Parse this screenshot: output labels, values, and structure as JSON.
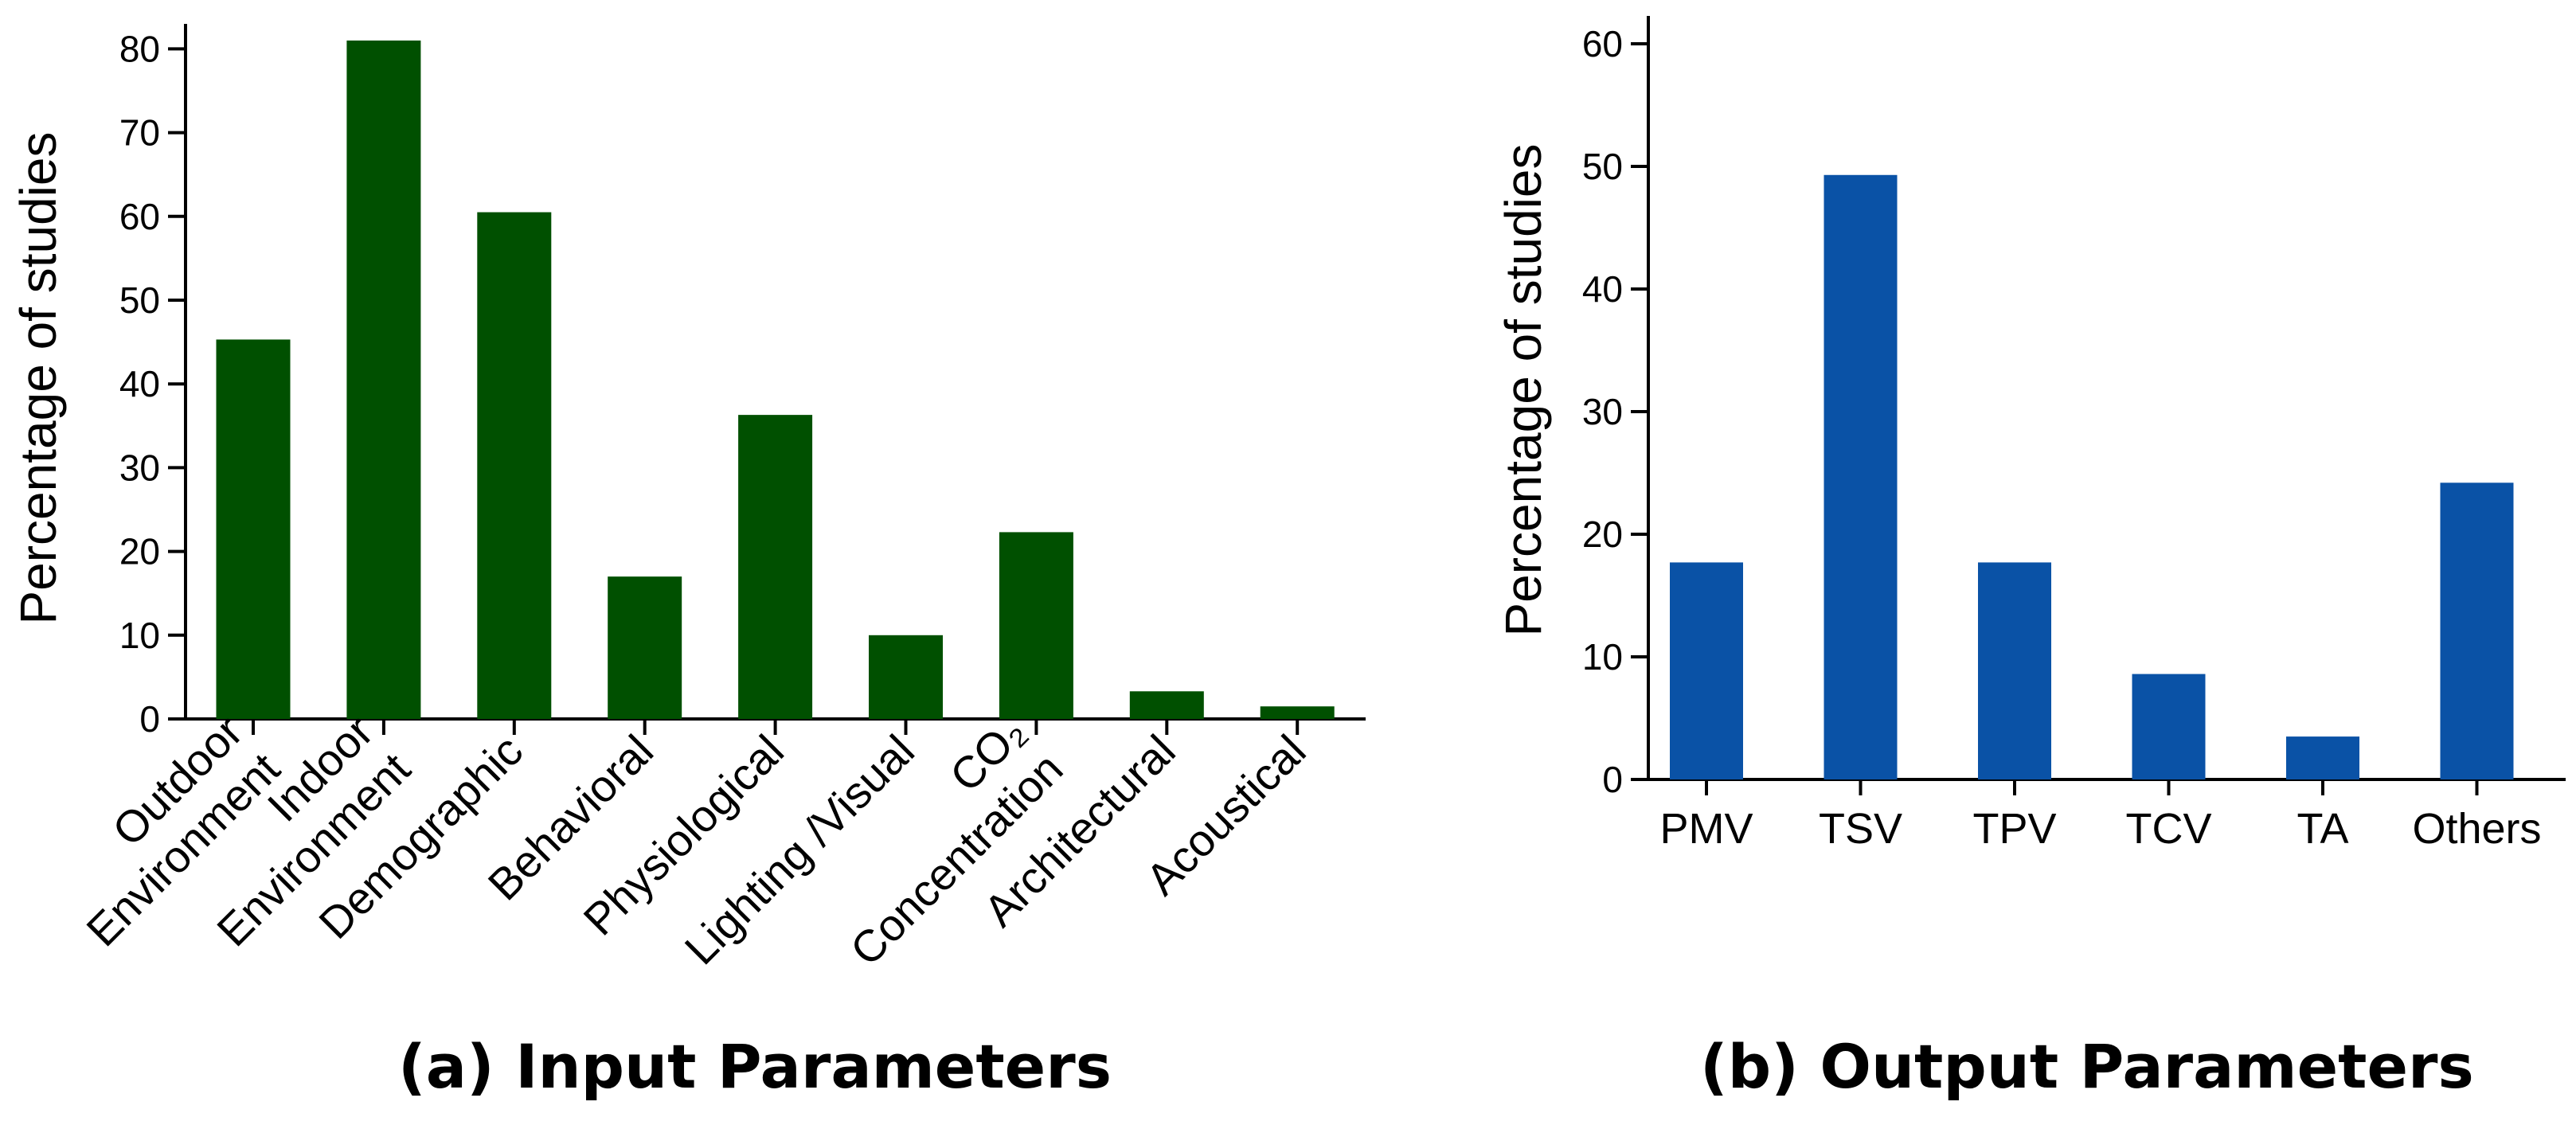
{
  "chart_data": [
    {
      "type": "bar",
      "title": "(a) Input Parameters",
      "xlabel": "",
      "ylabel": "Percentage of studies",
      "ylim": [
        0,
        82
      ],
      "yticks": [
        0,
        10,
        20,
        30,
        40,
        50,
        60,
        70,
        80
      ],
      "categories": [
        [
          "Outdoor",
          "Environment"
        ],
        [
          "Indoor",
          "Environment"
        ],
        [
          "Demographic"
        ],
        [
          "Behavioral"
        ],
        [
          "Physiological"
        ],
        [
          "Lighting /Visual"
        ],
        [
          "CO₂",
          "Concentration"
        ],
        [
          "Architectural"
        ],
        [
          "Acoustical"
        ]
      ],
      "values": [
        45.3,
        81.0,
        60.5,
        17.0,
        36.3,
        10.0,
        22.3,
        3.3,
        1.5
      ],
      "color": "#005000",
      "grid": false
    },
    {
      "type": "bar",
      "title": "(b) Output Parameters",
      "xlabel": "",
      "ylabel": "Percentage of studies",
      "ylim": [
        0,
        63
      ],
      "yticks": [
        0,
        10,
        20,
        30,
        40,
        50,
        60
      ],
      "categories": [
        "PMV",
        "TSV",
        "TPV",
        "TCV",
        "TA",
        "Others"
      ],
      "values": [
        17.7,
        49.3,
        17.7,
        8.6,
        3.5,
        24.2
      ],
      "color": "#0A52A6",
      "grid": false
    }
  ]
}
